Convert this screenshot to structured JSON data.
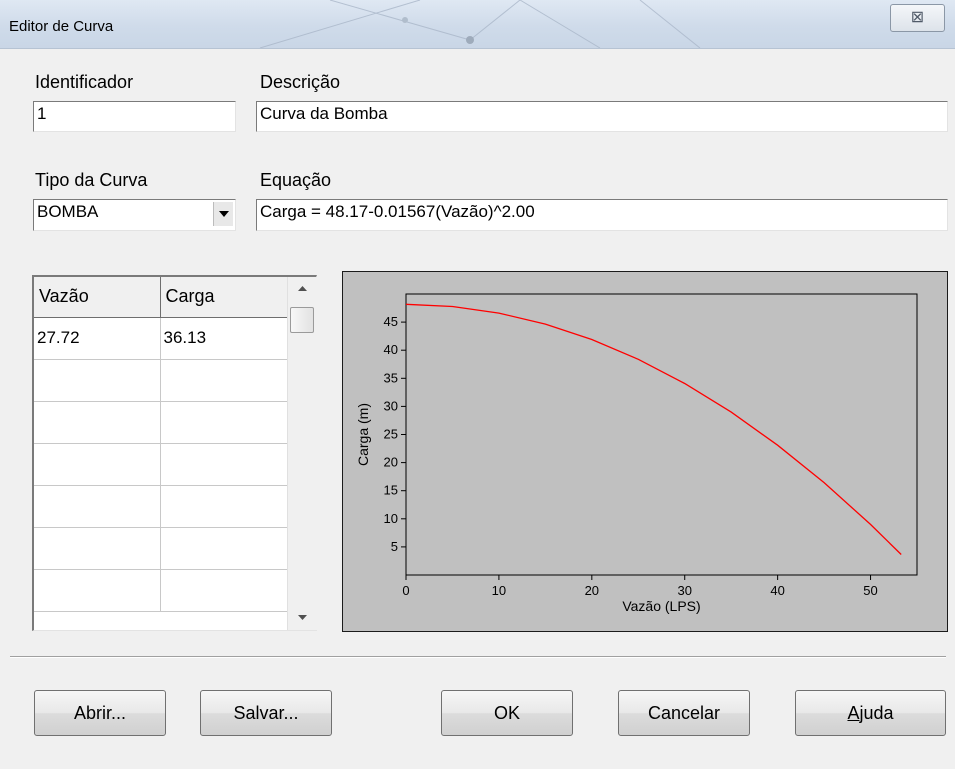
{
  "window": {
    "title": "Editor de Curva",
    "close_glyph": "⊠"
  },
  "form": {
    "id_label": "Identificador",
    "id_value": "1",
    "desc_label": "Descrição",
    "desc_value": "Curva da Bomba",
    "type_label": "Tipo da Curva",
    "type_value": "BOMBA",
    "eq_label": "Equação",
    "eq_value": "Carga = 48.17-0.01567(Vazão)^2.00"
  },
  "table": {
    "headers": [
      "Vazão",
      "Carga"
    ],
    "rows": [
      [
        "27.72",
        "36.13"
      ],
      [
        "",
        ""
      ],
      [
        "",
        ""
      ],
      [
        "",
        ""
      ],
      [
        "",
        ""
      ],
      [
        "",
        ""
      ],
      [
        "",
        ""
      ],
      [
        "",
        ""
      ]
    ]
  },
  "chart_data": {
    "type": "line",
    "title": "",
    "xlabel": "Vazão (LPS)",
    "ylabel": "Carga (m)",
    "xlim": [
      0,
      55
    ],
    "ylim": [
      0,
      50
    ],
    "xticks": [
      0,
      10,
      20,
      30,
      40,
      50
    ],
    "yticks": [
      5,
      10,
      15,
      20,
      25,
      30,
      35,
      40,
      45
    ],
    "series": [
      {
        "color": "#ff0000",
        "x": [
          0,
          5,
          10,
          15,
          20,
          25,
          30,
          35,
          40,
          45,
          50,
          53.3
        ],
        "y": [
          48.17,
          47.78,
          46.6,
          44.64,
          41.9,
          38.38,
          34.07,
          28.98,
          23.1,
          16.44,
          9.0,
          3.65
        ]
      }
    ]
  },
  "buttons": {
    "open": "Abrir...",
    "save": "Salvar...",
    "ok": "OK",
    "cancel": "Cancelar",
    "help_key": "A",
    "help_rest": "juda"
  }
}
